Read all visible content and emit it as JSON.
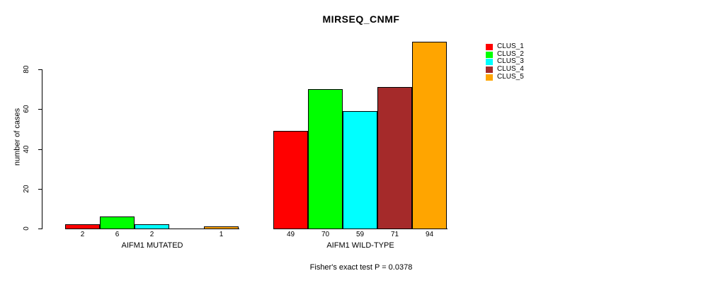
{
  "title": "MIRSEQ_CNMF",
  "chart_data": {
    "type": "bar",
    "title": "MIRSEQ_CNMF",
    "xlabel": "",
    "ylabel": "number of cases",
    "ylim": [
      0,
      94
    ],
    "yticks": [
      0,
      20,
      40,
      60,
      80
    ],
    "grid": false,
    "legend_position": "top-right-outside",
    "bar_value_labels": true,
    "categories": [
      "AIFM1 MUTATED",
      "AIFM1 WILD-TYPE"
    ],
    "series": [
      {
        "name": "CLUS_1",
        "color": "#FF0000",
        "values": [
          2,
          49
        ]
      },
      {
        "name": "CLUS_2",
        "color": "#00FF00",
        "values": [
          6,
          70
        ]
      },
      {
        "name": "CLUS_3",
        "color": "#00FFFF",
        "values": [
          2,
          59
        ]
      },
      {
        "name": "CLUS_4",
        "color": "#A52A2A",
        "values": [
          0,
          71
        ]
      },
      {
        "name": "CLUS_5",
        "color": "#FFA500",
        "values": [
          1,
          94
        ]
      }
    ],
    "annotation": "Fisher's exact test P = 0.0378"
  }
}
